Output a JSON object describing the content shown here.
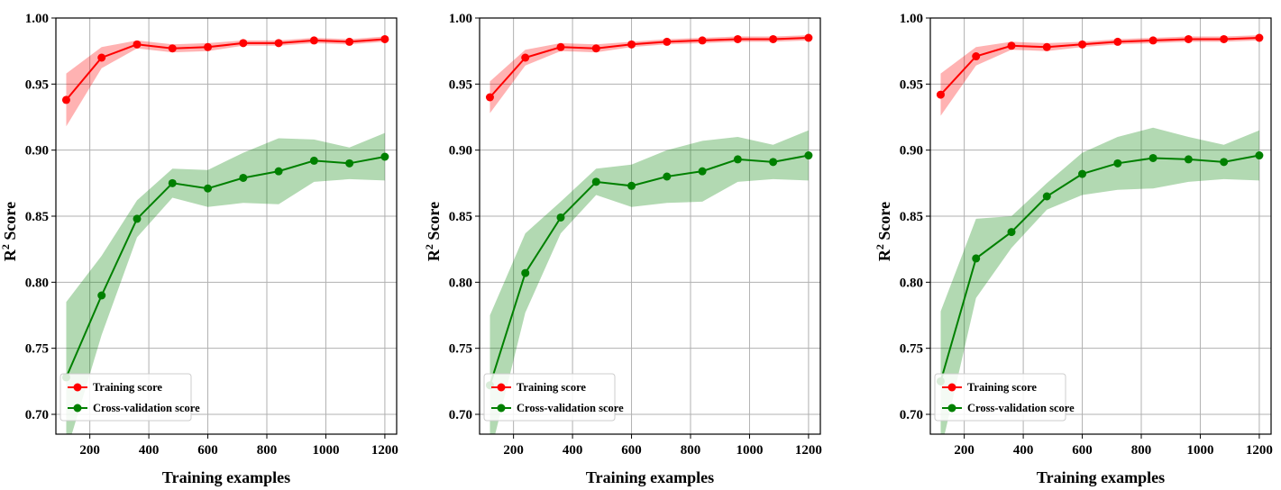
{
  "chart_data": [
    {
      "type": "line",
      "xlabel": "Training examples",
      "ylabel_main": "R",
      "ylabel_sup": "2",
      "ylabel_rest": " Score",
      "xlim": [
        85,
        1240
      ],
      "ylim": [
        0.685,
        1.0
      ],
      "xticks": [
        200,
        400,
        600,
        800,
        1000,
        1200
      ],
      "yticks": [
        0.7,
        0.75,
        0.8,
        0.85,
        0.9,
        0.95,
        1.0
      ],
      "grid": true,
      "legend_placement": "lower-left",
      "x": [
        120,
        240,
        360,
        480,
        600,
        720,
        840,
        960,
        1080,
        1200
      ],
      "series": [
        {
          "name": "Training score",
          "color": "#ff0000",
          "values": [
            0.938,
            0.97,
            0.98,
            0.977,
            0.978,
            0.981,
            0.981,
            0.983,
            0.982,
            0.984
          ],
          "std": [
            0.02,
            0.008,
            0.003,
            0.003,
            0.003,
            0.002,
            0.002,
            0.002,
            0.002,
            0.002
          ]
        },
        {
          "name": "Cross-validation score",
          "color": "#008000",
          "values": [
            0.728,
            0.79,
            0.848,
            0.875,
            0.871,
            0.879,
            0.884,
            0.892,
            0.89,
            0.895
          ],
          "std": [
            0.057,
            0.03,
            0.014,
            0.011,
            0.014,
            0.019,
            0.025,
            0.016,
            0.012,
            0.018
          ]
        }
      ]
    },
    {
      "type": "line",
      "xlabel": "Training examples",
      "ylabel_main": "R",
      "ylabel_sup": "2",
      "ylabel_rest": " Score",
      "xlim": [
        85,
        1240
      ],
      "ylim": [
        0.685,
        1.0
      ],
      "xticks": [
        200,
        400,
        600,
        800,
        1000,
        1200
      ],
      "yticks": [
        0.7,
        0.75,
        0.8,
        0.85,
        0.9,
        0.95,
        1.0
      ],
      "grid": true,
      "legend_placement": "lower-left",
      "x": [
        120,
        240,
        360,
        480,
        600,
        720,
        840,
        960,
        1080,
        1200
      ],
      "series": [
        {
          "name": "Training score",
          "color": "#ff0000",
          "values": [
            0.94,
            0.97,
            0.978,
            0.977,
            0.98,
            0.982,
            0.983,
            0.984,
            0.984,
            0.985
          ],
          "std": [
            0.012,
            0.006,
            0.003,
            0.003,
            0.002,
            0.002,
            0.002,
            0.002,
            0.002,
            0.002
          ]
        },
        {
          "name": "Cross-validation score",
          "color": "#008000",
          "values": [
            0.722,
            0.807,
            0.849,
            0.876,
            0.873,
            0.88,
            0.884,
            0.893,
            0.891,
            0.896
          ],
          "std": [
            0.053,
            0.03,
            0.012,
            0.01,
            0.016,
            0.02,
            0.023,
            0.017,
            0.013,
            0.019
          ]
        }
      ]
    },
    {
      "type": "line",
      "xlabel": "Training examples",
      "ylabel_main": "R",
      "ylabel_sup": "2",
      "ylabel_rest": " Score",
      "xlim": [
        85,
        1240
      ],
      "ylim": [
        0.685,
        1.0
      ],
      "xticks": [
        200,
        400,
        600,
        800,
        1000,
        1200
      ],
      "yticks": [
        0.7,
        0.75,
        0.8,
        0.85,
        0.9,
        0.95,
        1.0
      ],
      "grid": true,
      "legend_placement": "lower-left",
      "x": [
        120,
        240,
        360,
        480,
        600,
        720,
        840,
        960,
        1080,
        1200
      ],
      "series": [
        {
          "name": "Training score",
          "color": "#ff0000",
          "values": [
            0.942,
            0.971,
            0.979,
            0.978,
            0.98,
            0.982,
            0.983,
            0.984,
            0.984,
            0.985
          ],
          "std": [
            0.016,
            0.007,
            0.003,
            0.003,
            0.002,
            0.002,
            0.002,
            0.002,
            0.002,
            0.002
          ]
        },
        {
          "name": "Cross-validation score",
          "color": "#008000",
          "values": [
            0.725,
            0.818,
            0.838,
            0.865,
            0.882,
            0.89,
            0.894,
            0.893,
            0.891,
            0.896
          ],
          "std": [
            0.053,
            0.03,
            0.012,
            0.01,
            0.016,
            0.02,
            0.023,
            0.017,
            0.013,
            0.019
          ]
        }
      ]
    }
  ]
}
